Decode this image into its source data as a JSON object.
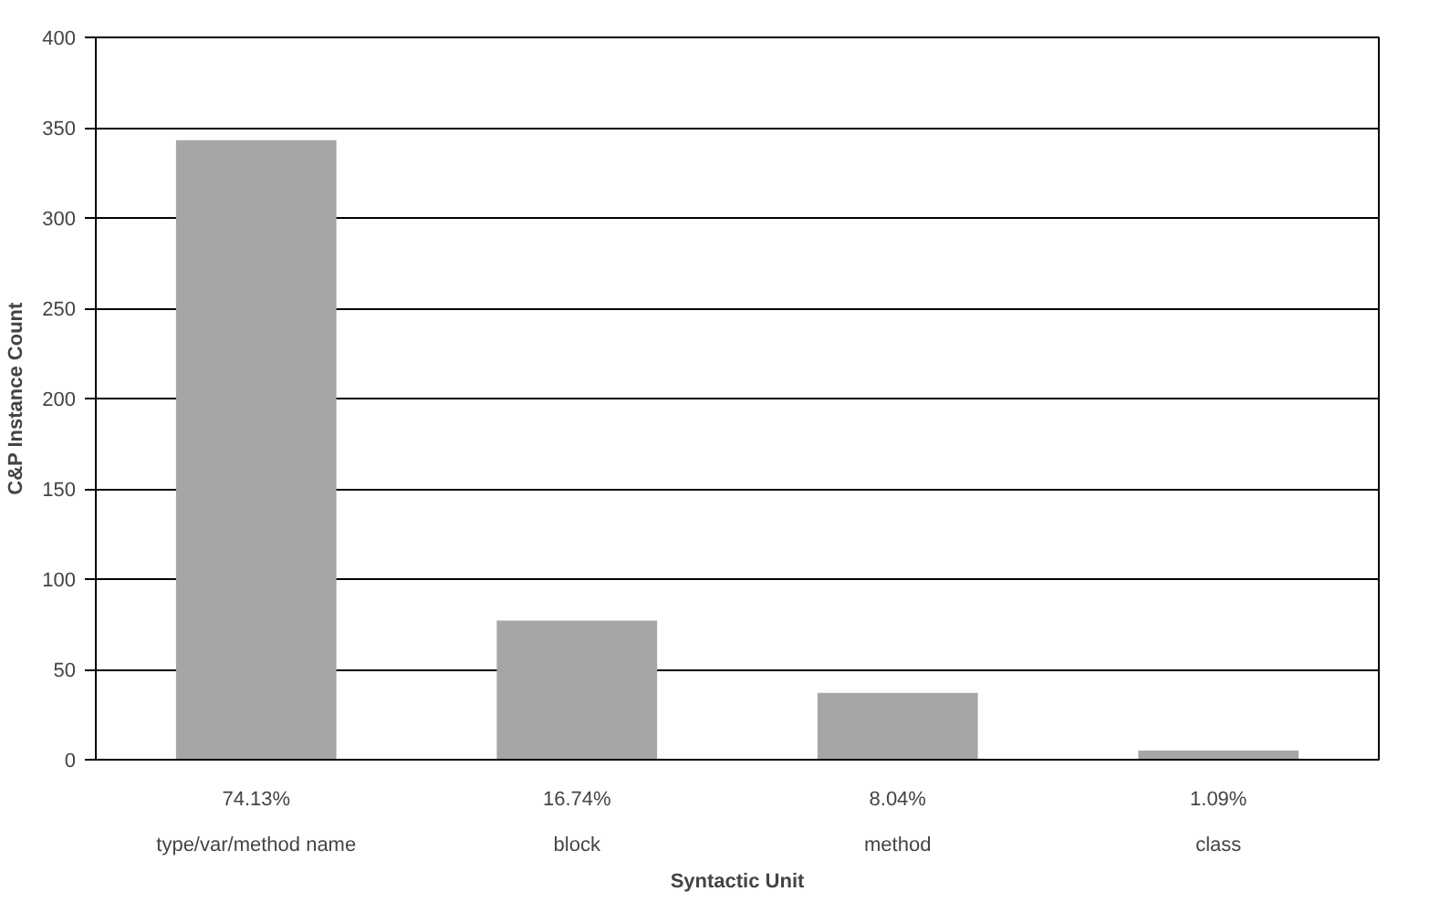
{
  "chart_data": {
    "type": "bar",
    "xlabel": "Syntactic Unit",
    "ylabel": "C&P Instance Count",
    "categories": [
      "type/var/method name",
      "block",
      "method",
      "class"
    ],
    "values": [
      343,
      77,
      37,
      5
    ],
    "annotations": [
      "74.13%",
      "16.74%",
      "8.04%",
      "1.09%"
    ],
    "color": "#a6a6a6",
    "ylim": [
      0,
      400
    ],
    "yticks": [
      0,
      50,
      100,
      150,
      200,
      250,
      300,
      350,
      400
    ],
    "grid": "y"
  }
}
